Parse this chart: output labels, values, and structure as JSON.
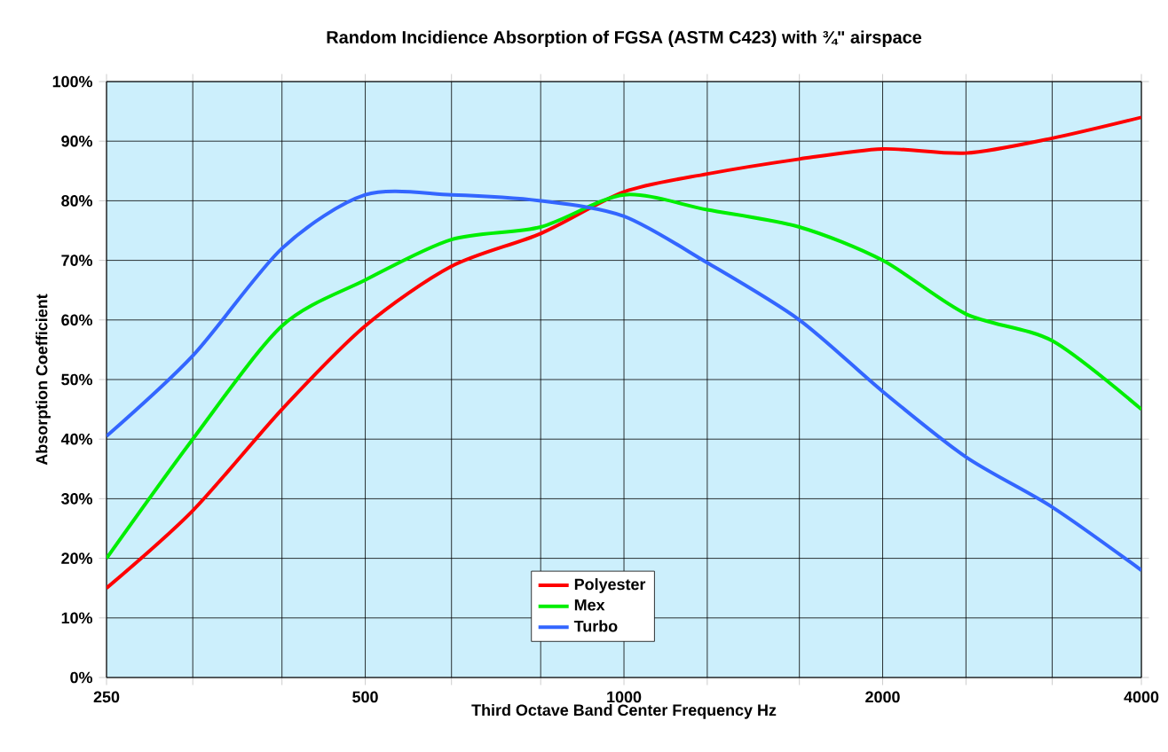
{
  "chart_data": {
    "type": "line",
    "title": "Random Incidience Absorption of FGSA (ASTM C423) with ¾\" airspace",
    "xlabel": "Third Octave Band Center Frequency Hz",
    "ylabel": "Absorption Coefficient",
    "log": "x",
    "x": [
      250,
      315,
      400,
      500,
      630,
      800,
      1000,
      1250,
      1600,
      2000,
      2500,
      3150,
      4000
    ],
    "series": [
      {
        "name": "Polyester",
        "color": "#ff0000",
        "values": [
          15,
          28,
          45,
          59,
          69,
          74.5,
          81.5,
          84.5,
          87,
          88.7,
          88,
          90.5,
          94
        ]
      },
      {
        "name": "Mex",
        "color": "#00ee00",
        "values": [
          20,
          40,
          59,
          66.7,
          73.5,
          75.6,
          81,
          78.5,
          75.6,
          70,
          61,
          56.5,
          45
        ]
      },
      {
        "name": "Turbo",
        "color": "#3366ff",
        "values": [
          40.5,
          54,
          72,
          81,
          81,
          80,
          77.4,
          69.6,
          60,
          48,
          37,
          28.6,
          18
        ]
      }
    ],
    "xlim": [
      250,
      4000
    ],
    "ylim": [
      0,
      100
    ],
    "xticks": [
      250,
      {
        "value": 315,
        "label": null
      },
      {
        "value": 400,
        "label": null
      },
      500,
      {
        "value": 630,
        "label": null
      },
      {
        "value": 800,
        "label": null
      },
      1000,
      {
        "value": 1250,
        "label": null
      },
      {
        "value": 1600,
        "label": null
      },
      2000,
      {
        "value": 2500,
        "label": null
      },
      {
        "value": 3150,
        "label": null
      },
      4000
    ],
    "yticks": [
      {
        "value": 0,
        "label": "0%"
      },
      {
        "value": 10,
        "label": "10%"
      },
      {
        "value": 20,
        "label": "20%"
      },
      {
        "value": 30,
        "label": "30%"
      },
      {
        "value": 40,
        "label": "40%"
      },
      {
        "value": 50,
        "label": "50%"
      },
      {
        "value": 60,
        "label": "60%"
      },
      {
        "value": 70,
        "label": "70%"
      },
      {
        "value": 80,
        "label": "80%"
      },
      {
        "value": 90,
        "label": "90%"
      },
      {
        "value": 100,
        "label": "100%"
      }
    ],
    "grid": true,
    "legend": "bottom",
    "marker": "none",
    "line_style": "solid"
  }
}
